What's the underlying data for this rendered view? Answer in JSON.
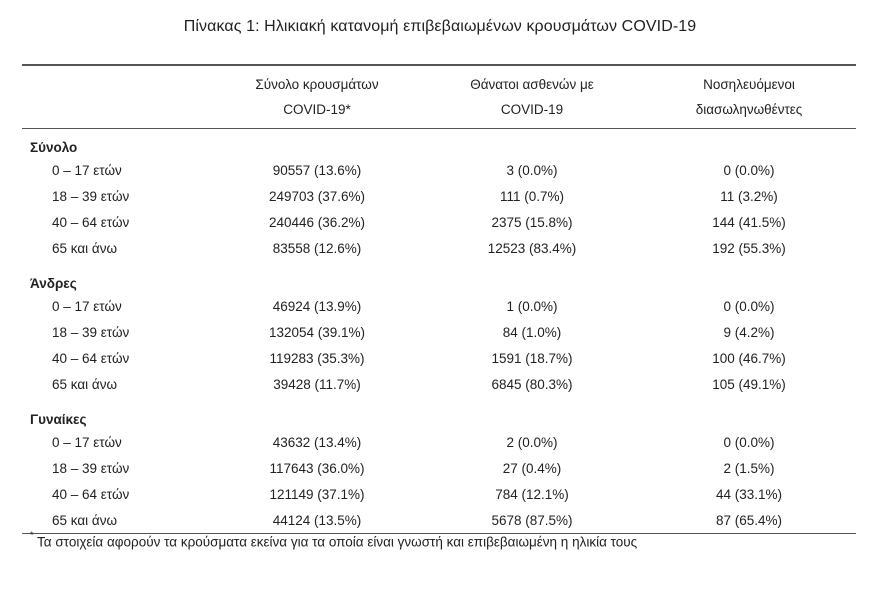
{
  "title": "Πίνακας 1: Ηλικιακή κατανομή επιβεβαιωμένων κρουσμάτων COVID-19",
  "columns": [
    {
      "line1": "Σύνολο κρουσμάτων",
      "line2": "COVID-19*"
    },
    {
      "line1": "Θάνατοι ασθενών με",
      "line2": "COVID-19"
    },
    {
      "line1": "Νοσηλευόμενοι",
      "line2": "διασωληνωθέντες"
    }
  ],
  "groups": [
    {
      "name": "Σύνολο",
      "rows": [
        {
          "age": "0 – 17 ετών",
          "cases": "90557 (13.6%)",
          "deaths": "3 (0.0%)",
          "intubated": "0 (0.0%)"
        },
        {
          "age": "18 – 39 ετών",
          "cases": "249703 (37.6%)",
          "deaths": "111 (0.7%)",
          "intubated": "11 (3.2%)"
        },
        {
          "age": "40 – 64 ετών",
          "cases": "240446 (36.2%)",
          "deaths": "2375 (15.8%)",
          "intubated": "144 (41.5%)"
        },
        {
          "age": "65 και άνω",
          "cases": "83558 (12.6%)",
          "deaths": "12523 (83.4%)",
          "intubated": "192 (55.3%)"
        }
      ]
    },
    {
      "name": "Άνδρες",
      "rows": [
        {
          "age": "0 – 17 ετών",
          "cases": "46924 (13.9%)",
          "deaths": "1 (0.0%)",
          "intubated": "0 (0.0%)"
        },
        {
          "age": "18 – 39 ετών",
          "cases": "132054 (39.1%)",
          "deaths": "84 (1.0%)",
          "intubated": "9 (4.2%)"
        },
        {
          "age": "40 – 64 ετών",
          "cases": "119283 (35.3%)",
          "deaths": "1591 (18.7%)",
          "intubated": "100 (46.7%)"
        },
        {
          "age": "65 και άνω",
          "cases": "39428 (11.7%)",
          "deaths": "6845 (80.3%)",
          "intubated": "105 (49.1%)"
        }
      ]
    },
    {
      "name": "Γυναίκες",
      "rows": [
        {
          "age": "0 – 17 ετών",
          "cases": "43632 (13.4%)",
          "deaths": "2 (0.0%)",
          "intubated": "0 (0.0%)"
        },
        {
          "age": "18 – 39 ετών",
          "cases": "117643 (36.0%)",
          "deaths": "27 (0.4%)",
          "intubated": "2 (1.5%)"
        },
        {
          "age": "40 – 64 ετών",
          "cases": "121149 (37.1%)",
          "deaths": "784 (12.1%)",
          "intubated": "44 (33.1%)"
        },
        {
          "age": "65 και άνω",
          "cases": "44124 (13.5%)",
          "deaths": "5678 (87.5%)",
          "intubated": "87 (65.4%)"
        }
      ]
    }
  ],
  "footnote": {
    "marker": "*",
    "text": "Τα στοιχεία αφορούν τα κρούσματα εκείνα για τα οποία είναι γνωστή και επιβεβαιωμένη η ηλικία τους"
  }
}
